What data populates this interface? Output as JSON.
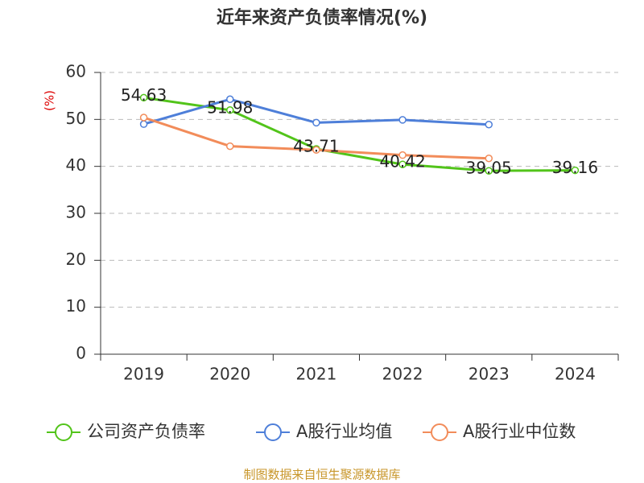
{
  "chart_data": {
    "type": "line",
    "title": "近年来资产负债率情况(%)",
    "y_label": "(%)",
    "categories": [
      "2019",
      "2020",
      "2021",
      "2022",
      "2023",
      "2024"
    ],
    "series": [
      {
        "name": "公司资产负债率",
        "color": "#52c41a",
        "values": [
          54.63,
          51.98,
          43.71,
          40.42,
          39.05,
          39.16
        ],
        "show_labels": true
      },
      {
        "name": "A股行业均值",
        "color": "#4e7fd9",
        "values": [
          49.0,
          54.3,
          49.3,
          49.9,
          48.9,
          null
        ]
      },
      {
        "name": "A股行业中位数",
        "color": "#f28c5a",
        "values": [
          50.4,
          44.3,
          43.5,
          42.4,
          41.7,
          null
        ]
      }
    ],
    "ylim": [
      0,
      60
    ],
    "yticks": [
      0,
      10,
      20,
      30,
      40,
      50,
      60
    ],
    "grid": true,
    "legend": "bottom",
    "source": "制图数据来自恒生聚源数据库"
  }
}
